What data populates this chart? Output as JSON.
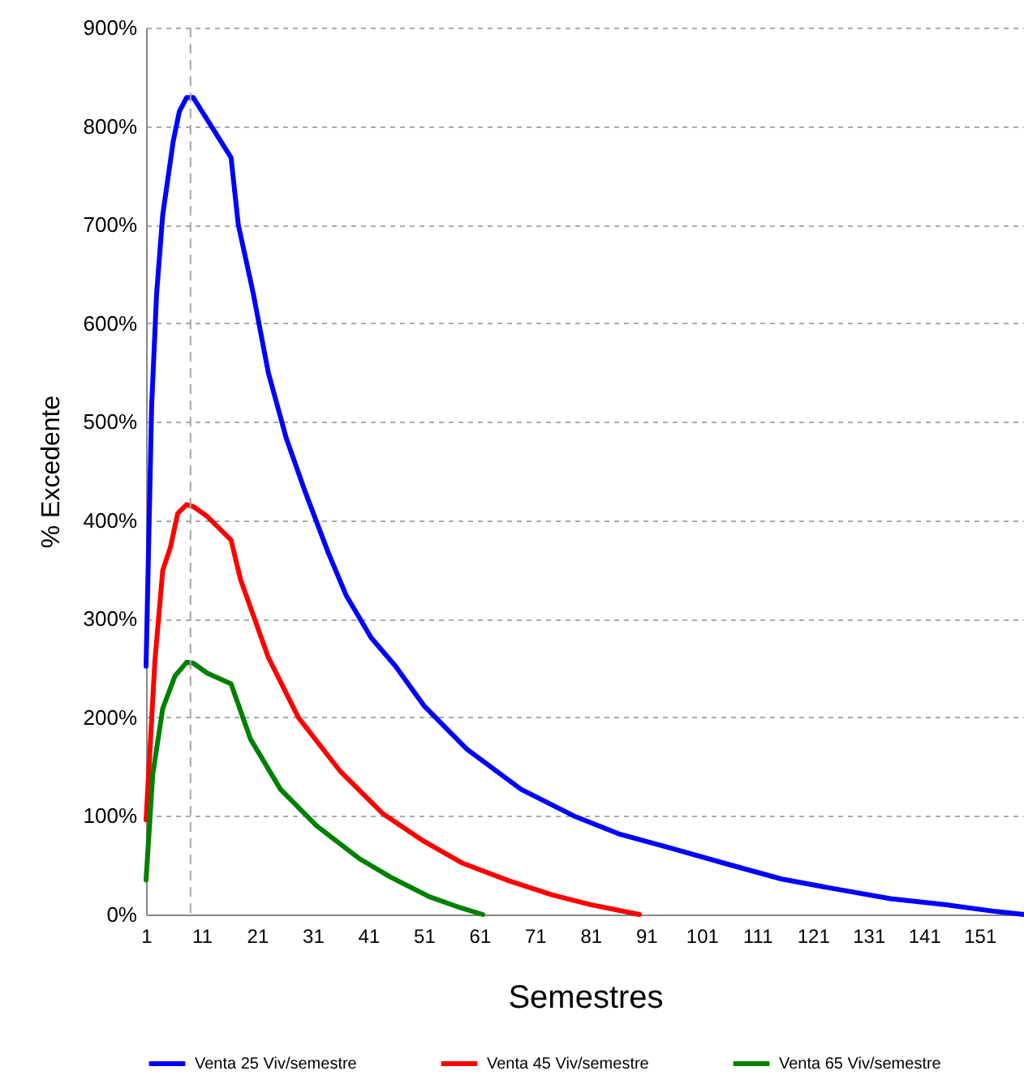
{
  "chart_data": {
    "type": "line",
    "xlabel": "Semestres",
    "ylabel": "% Excedente",
    "xlim": [
      1,
      159
    ],
    "xticks": [
      1,
      11,
      21,
      31,
      41,
      51,
      61,
      71,
      81,
      91,
      101,
      111,
      121,
      131,
      141,
      151
    ],
    "ylim": [
      0,
      900
    ],
    "yticks": [
      {
        "value": 0,
        "label": "0%"
      },
      {
        "value": 100,
        "label": "100%"
      },
      {
        "value": 200,
        "label": "200%"
      },
      {
        "value": 300,
        "label": "300%"
      },
      {
        "value": 400,
        "label": "400%"
      },
      {
        "value": 500,
        "label": "500%"
      },
      {
        "value": 600,
        "label": "600%"
      },
      {
        "value": 700,
        "label": "700%"
      },
      {
        "value": 800,
        "label": "800%"
      },
      {
        "value": 900,
        "label": "900%"
      }
    ],
    "grid": "y",
    "legend": "bottom",
    "marker": "none",
    "line_style": "solid",
    "ref_lines": [
      {
        "axis": "x",
        "value": 9,
        "color": "#a6a6a6",
        "line_style": "dashed"
      }
    ],
    "series": [
      {
        "name": "Venta 25 Viv/semestre",
        "color": "#0000ff",
        "x": [
          1,
          2,
          2.9,
          4,
          5.9,
          7,
          8.3,
          9.5,
          16.3,
          17.6,
          20.3,
          23,
          26.2,
          29.5,
          33.8,
          37,
          41.5,
          45.9,
          51,
          58.7,
          68.5,
          78,
          86,
          95.7,
          105.7,
          115.4,
          125,
          135,
          144.7,
          154,
          159
        ],
        "values": [
          252,
          515,
          630,
          710,
          785,
          815,
          829,
          829,
          768,
          700,
          630,
          550,
          484,
          431,
          367,
          324,
          281,
          252,
          212,
          168,
          127,
          100,
          82,
          67,
          51,
          36,
          26,
          16,
          10,
          3,
          0
        ]
      },
      {
        "name": "Venta 45 Viv/semestre",
        "color": "#ff0000",
        "x": [
          1,
          2.6,
          4,
          5.4,
          6.7,
          8.3,
          9.5,
          12,
          16.3,
          18,
          23,
          28.4,
          36,
          43.7,
          50.8,
          58,
          66.4,
          74,
          81,
          89.8
        ],
        "values": [
          96,
          258,
          349,
          373,
          407,
          416,
          414,
          404,
          380,
          340,
          261,
          200,
          145,
          102,
          75,
          52,
          34,
          20,
          10,
          0
        ]
      },
      {
        "name": "Venta 65 Viv/semestre",
        "color": "#008000",
        "x": [
          1,
          2.2,
          4,
          6.2,
          8.3,
          9.5,
          12,
          16.3,
          19.8,
          25.2,
          31.7,
          39.3,
          45,
          52,
          57,
          61.6
        ],
        "values": [
          35,
          142,
          209,
          242,
          256,
          255,
          245,
          234,
          178,
          127,
          90,
          57,
          38,
          18,
          8,
          0
        ]
      }
    ]
  }
}
